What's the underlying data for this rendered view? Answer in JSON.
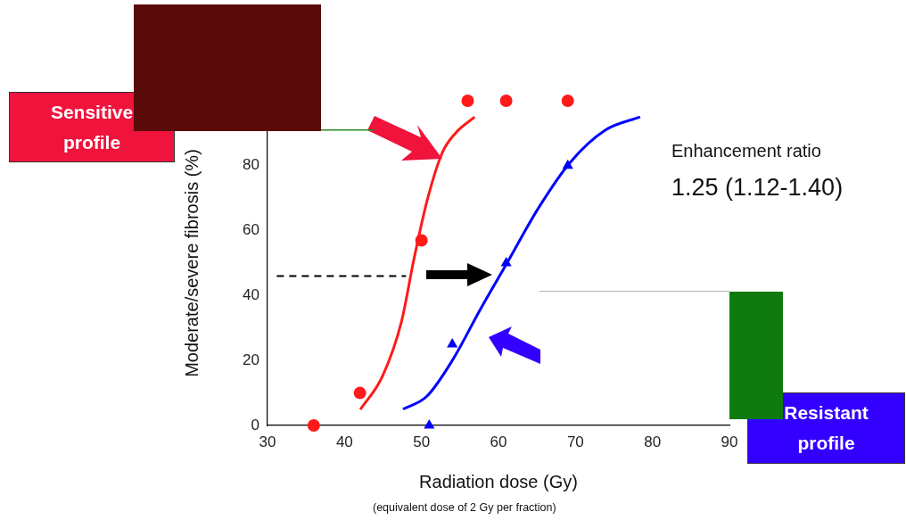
{
  "chart_data": {
    "type": "scatter",
    "xlabel": "Radiation dose (Gy)",
    "ylabel": "Moderate/severe fibrosis (%)",
    "xlim": [
      30,
      90
    ],
    "xticks": [
      30,
      40,
      50,
      60,
      70,
      80,
      90
    ],
    "ylim": [
      0,
      100
    ],
    "yticks": [
      0,
      20,
      40,
      60,
      80
    ],
    "grid": false,
    "legend": false,
    "series": [
      {
        "type": "line",
        "color": "#ff1a1a",
        "marker": "none",
        "x": [
          42.05,
          44.9,
          47.4,
          49.0,
          50.7,
          52.7,
          54.4,
          56.9
        ],
        "values": [
          4.9,
          15,
          32,
          51,
          69,
          84,
          90,
          95
        ]
      },
      {
        "type": "line",
        "color": "#0000ff",
        "marker": "none",
        "x": [
          47.6,
          50.7,
          54.0,
          57.7,
          61.1,
          65.2,
          69.3,
          73.9,
          78.4
        ],
        "values": [
          5,
          9,
          20,
          36,
          50,
          67,
          81,
          91,
          95
        ]
      },
      {
        "type": "line",
        "color": "#000000",
        "marker": "none",
        "line_style": "dashed",
        "x": [
          31.2,
          48
        ],
        "values": [
          46,
          46
        ]
      },
      {
        "type": "scatter",
        "color": "#ff1a1a",
        "marker": "circle",
        "x": [
          36,
          42,
          50,
          56,
          61,
          69
        ],
        "values": [
          0,
          10,
          57,
          100,
          100,
          100
        ]
      },
      {
        "type": "scatter",
        "color": "#0000ff",
        "marker": "triangle",
        "x": [
          51,
          54,
          61,
          69
        ],
        "values": [
          0,
          25,
          50,
          80
        ]
      }
    ],
    "annotations": [
      "(equivalent dose of 2 Gy per fraction)",
      "Enhancement ratio",
      "1.25 (1.12-1.40)",
      "Sensitive profile",
      "Resistant profile"
    ]
  }
}
